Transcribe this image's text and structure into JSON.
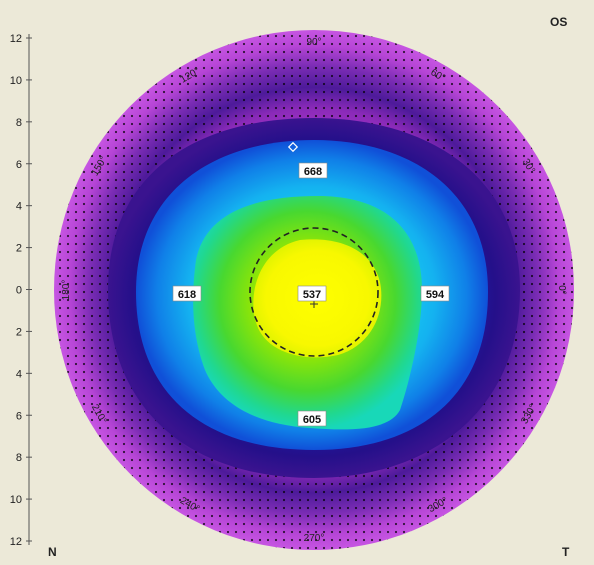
{
  "eye_label": "OS",
  "nasal_label": "N",
  "temporal_label": "T",
  "y_axis_ticks": [
    "12",
    "10",
    "8",
    "6",
    "4",
    "2",
    "0",
    "2",
    "4",
    "6",
    "8",
    "10",
    "12"
  ],
  "angle_labels": [
    "90°",
    "60°",
    "30°",
    "0°",
    "330°",
    "300°",
    "270°",
    "240°",
    "210°",
    "180°",
    "150°",
    "120°"
  ],
  "thickness_values": [
    {
      "position": "superior",
      "value": "668"
    },
    {
      "position": "nasal",
      "value": "618"
    },
    {
      "position": "center",
      "value": "537"
    },
    {
      "position": "temporal",
      "value": "594"
    },
    {
      "position": "inferior",
      "value": "605"
    }
  ],
  "colors": {
    "background": "#ece9d8",
    "outer": "#c44ce0",
    "ring": "#1f0a8a",
    "inner": "#18d8f0",
    "center": "#fff200"
  }
}
